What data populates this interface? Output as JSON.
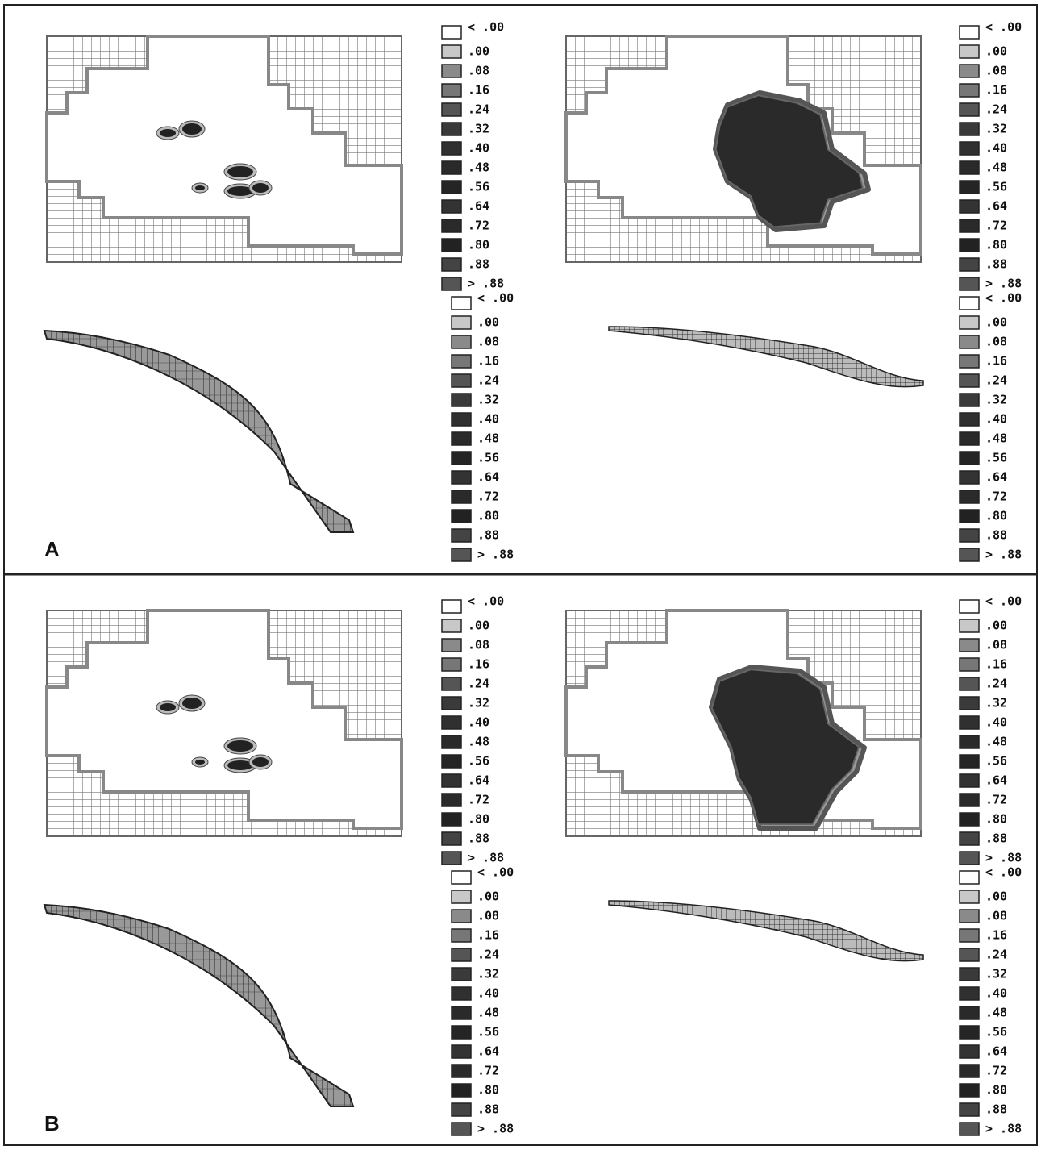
{
  "panels": [
    {
      "label": "A",
      "plots": [
        {
          "legend": [
            "< .00",
            ".00",
            ".08",
            ".16",
            ".24",
            ".32",
            ".40",
            ".48",
            ".56",
            ".64",
            ".72",
            ".80",
            ".88",
            "> .88"
          ]
        },
        {
          "legend": [
            "< .00",
            ".00",
            ".08",
            ".16",
            ".24",
            ".32",
            ".40",
            ".48",
            ".56",
            ".64",
            ".72",
            ".80",
            ".88",
            "> .88"
          ]
        },
        {
          "legend": [
            "< .00",
            ".00",
            ".08",
            ".16",
            ".24",
            ".32",
            ".40",
            ".48",
            ".56",
            ".64",
            ".72",
            ".80",
            ".88",
            "> .88"
          ]
        },
        {
          "legend": [
            "< .00",
            ".00",
            ".08",
            ".16",
            ".24",
            ".32",
            ".40",
            ".48",
            ".56",
            ".64",
            ".72",
            ".80",
            ".88",
            "> .88"
          ]
        }
      ]
    },
    {
      "label": "B",
      "plots": [
        {
          "legend": [
            "< .00",
            ".00",
            ".08",
            ".16",
            ".24",
            ".32",
            ".40",
            ".48",
            ".56",
            ".64",
            ".72",
            ".80",
            ".88",
            "> .88"
          ]
        },
        {
          "legend": [
            "< .00",
            ".00",
            ".08",
            ".16",
            ".24",
            ".32",
            ".40",
            ".48",
            ".56",
            ".64",
            ".72",
            ".80",
            ".88",
            "> .88"
          ]
        },
        {
          "legend": [
            "< .00",
            ".00",
            ".08",
            ".16",
            ".24",
            ".32",
            ".40",
            ".48",
            ".56",
            ".64",
            ".72",
            ".80",
            ".88",
            "> .88"
          ]
        },
        {
          "legend": [
            "< .00",
            ".00",
            ".08",
            ".16",
            ".24",
            ".32",
            ".40",
            ".48",
            ".56",
            ".64",
            ".72",
            ".80",
            ".88",
            "> .88"
          ]
        }
      ]
    }
  ]
}
